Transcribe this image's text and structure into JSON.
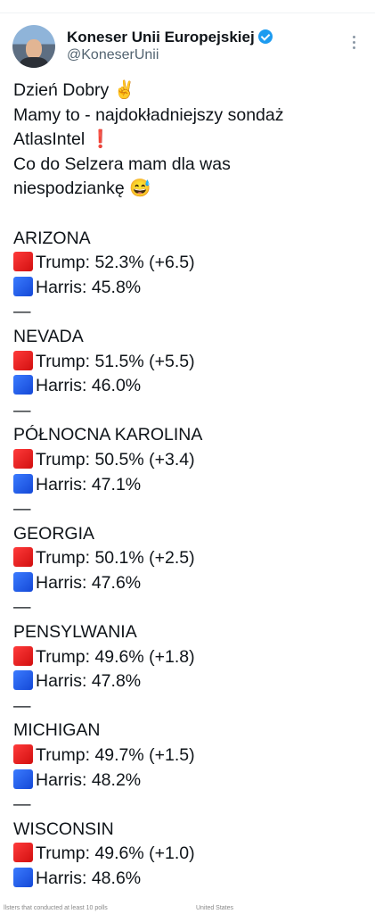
{
  "header": {
    "name": "Koneser Unii Europejskiej",
    "handle": "@KoneserUnii"
  },
  "intro": [
    "Dzień Dobry ✌️",
    "Mamy to - najdokładniejszy sondaż",
    "AtlasIntel ❗",
    "Co do Selzera mam dla was",
    "niespodziankę 😅"
  ],
  "states": [
    {
      "name": "ARIZONA",
      "trump": "Trump: 52.3% (+6.5)",
      "harris": "Harris: 45.8%",
      "separator": "—"
    },
    {
      "name": "NEVADA",
      "trump": "Trump: 51.5% (+5.5)",
      "harris": "Harris: 46.0%",
      "separator": "—"
    },
    {
      "name": "PÓŁNOCNA KAROLINA",
      "trump": "Trump: 50.5% (+3.4)",
      "harris": "Harris: 47.1%",
      "separator": "—"
    },
    {
      "name": "GEORGIA",
      "trump": "Trump: 50.1% (+2.5)",
      "harris": "Harris: 47.6%",
      "separator": "—"
    },
    {
      "name": "PENSYLWANIA",
      "trump": "Trump: 49.6% (+1.8)",
      "harris": "Harris: 47.8%",
      "separator": "—"
    },
    {
      "name": "MICHIGAN",
      "trump": "Trump: 49.7% (+1.5)",
      "harris": "Harris: 48.2%",
      "separator": "—"
    },
    {
      "name": "WISCONSIN",
      "trump": "Trump: 49.6% (+1.0)",
      "harris": "Harris: 48.6%"
    }
  ],
  "footer": [
    "llsters that conducted at least 10 polls",
    "United States"
  ]
}
